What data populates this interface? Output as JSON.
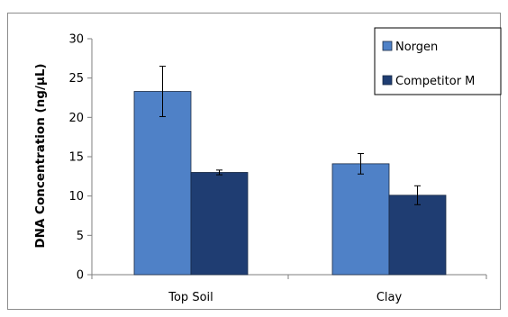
{
  "chart_data": {
    "type": "bar",
    "title": "",
    "xlabel": "",
    "ylabel": "DNA Concentration (ng/μL)",
    "categories": [
      "Top Soil",
      "Clay"
    ],
    "series": [
      {
        "name": "Norgen",
        "values": [
          23.3,
          14.1
        ],
        "errors": [
          3.2,
          1.3
        ],
        "color": "#4f81c7"
      },
      {
        "name": "Competitor M",
        "values": [
          13.0,
          10.1
        ],
        "errors": [
          0.3,
          1.2
        ],
        "color": "#1f3d72"
      }
    ],
    "ylim": [
      0,
      30
    ],
    "yticks": [
      0,
      5,
      10,
      15,
      20,
      25,
      30
    ],
    "grid": false,
    "legend_position": "top-right"
  }
}
